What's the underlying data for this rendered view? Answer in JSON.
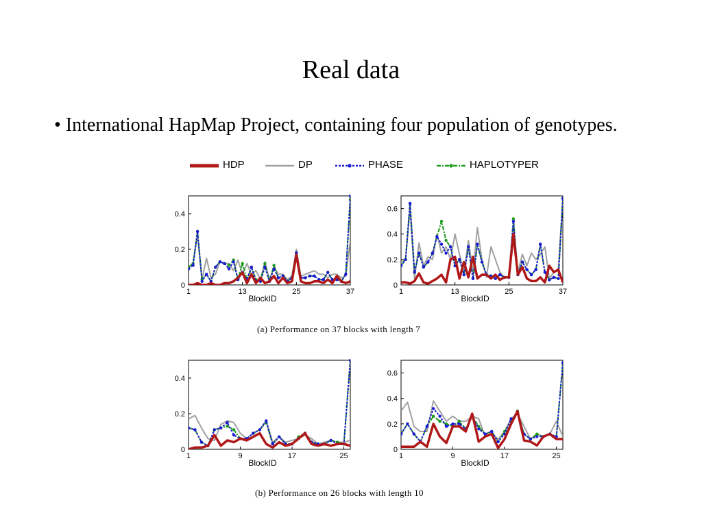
{
  "slide": {
    "title": "Real data",
    "bullet": "• International HapMap Project, containing four population of genotypes."
  },
  "legend": [
    {
      "label": "HDP",
      "color": "#b01818",
      "style": "solid-thick"
    },
    {
      "label": "DP",
      "color": "#a0a0a0",
      "style": "solid"
    },
    {
      "label": "PHASE",
      "color": "#1a1ad0",
      "style": "dotted-markers"
    },
    {
      "label": "HAPLOTYPER",
      "color": "#1a9a1a",
      "style": "dashdot-markers"
    }
  ],
  "captions": {
    "a": "(a)  Performance on 37 blocks with length 7",
    "b": "(b)  Performance on 26 blocks with length 10"
  },
  "chart_data": [
    {
      "type": "line",
      "id": "a-left",
      "xlabel": "BlockID",
      "x": [
        1,
        2,
        3,
        4,
        5,
        6,
        7,
        8,
        9,
        10,
        11,
        12,
        13,
        14,
        15,
        16,
        17,
        18,
        19,
        20,
        21,
        22,
        23,
        24,
        25,
        26,
        27,
        28,
        29,
        30,
        31,
        32,
        33,
        34,
        35,
        36,
        37
      ],
      "xticks": [
        1,
        13,
        25,
        37
      ],
      "ylim": [
        0,
        0.5
      ],
      "yticks": [
        0,
        0.2,
        0.4
      ],
      "yticklabels": [
        "0",
        "0.2",
        "0.4"
      ],
      "series": [
        {
          "name": "HDP",
          "values": [
            0,
            0,
            0.01,
            0,
            0,
            0.01,
            0,
            0,
            0.01,
            0.01,
            0.02,
            0.04,
            0.07,
            0.01,
            0.06,
            0.01,
            0.04,
            0.01,
            0.02,
            0.05,
            0.01,
            0.04,
            0.01,
            0.02,
            0.17,
            0.02,
            0.01,
            0.01,
            0.02,
            0.02,
            0.01,
            0.03,
            0.01,
            0.05,
            0.02,
            0.01,
            0.02
          ]
        },
        {
          "name": "DP",
          "values": [
            0.1,
            0.12,
            0.28,
            0.03,
            0.15,
            0.04,
            0.06,
            0.13,
            0.12,
            0.12,
            0.08,
            0.14,
            0.06,
            0.12,
            0.06,
            0.08,
            0.03,
            0.13,
            0.03,
            0.1,
            0.06,
            0.06,
            0.03,
            0.05,
            0.2,
            0.05,
            0.06,
            0.07,
            0.08,
            0.06,
            0.06,
            0.04,
            0.06,
            0.06,
            0.04,
            0.05,
            0.25
          ]
        },
        {
          "name": "PHASE",
          "values": [
            0.09,
            0.11,
            0.3,
            0.02,
            0.06,
            0.02,
            0.1,
            0.13,
            0.12,
            0.09,
            0.13,
            0.03,
            0.07,
            0.03,
            0.1,
            0.02,
            0.02,
            0.1,
            0.02,
            0.09,
            0.04,
            0.05,
            0.02,
            0.04,
            0.18,
            0.04,
            0.04,
            0.05,
            0.05,
            0.03,
            0.03,
            0.07,
            0.03,
            0.03,
            0.02,
            0.06,
            0.5
          ]
        },
        {
          "name": "HAPLOTYPER",
          "values": [
            0.1,
            0.12,
            0.3,
            0.03,
            0.06,
            0.02,
            0.1,
            0.13,
            0.12,
            0.11,
            0.14,
            0.03,
            0.12,
            0.03,
            0.1,
            0.03,
            0.02,
            0.12,
            0.02,
            0.11,
            0.04,
            0.05,
            0.02,
            0.04,
            0.18,
            0.04,
            0.04,
            0.05,
            0.05,
            0.03,
            0.03,
            0.07,
            0.03,
            0.03,
            0.02,
            0.06,
            0.48
          ]
        }
      ]
    },
    {
      "type": "line",
      "id": "a-right",
      "xlabel": "BlockID",
      "x": [
        1,
        2,
        3,
        4,
        5,
        6,
        7,
        8,
        9,
        10,
        11,
        12,
        13,
        14,
        15,
        16,
        17,
        18,
        19,
        20,
        21,
        22,
        23,
        24,
        25,
        26,
        27,
        28,
        29,
        30,
        31,
        32,
        33,
        34,
        35,
        36,
        37
      ],
      "xticks": [
        1,
        13,
        25,
        37
      ],
      "ylim": [
        0,
        0.7
      ],
      "yticks": [
        0,
        0.2,
        0.4,
        0.6
      ],
      "yticklabels": [
        "0",
        "0.2",
        "0.4",
        "0.6"
      ],
      "series": [
        {
          "name": "HDP",
          "values": [
            0.02,
            0.02,
            0.01,
            0.03,
            0.09,
            0.02,
            0.01,
            0.03,
            0.05,
            0.08,
            0.02,
            0.2,
            0.22,
            0.05,
            0.18,
            0.06,
            0.22,
            0.05,
            0.08,
            0.08,
            0.05,
            0.08,
            0.04,
            0.06,
            0.06,
            0.4,
            0.08,
            0.14,
            0.05,
            0.03,
            0.03,
            0.06,
            0.02,
            0.15,
            0.1,
            0.12,
            0.02
          ]
        },
        {
          "name": "DP",
          "values": [
            0.18,
            0.2,
            0.6,
            0.05,
            0.33,
            0.15,
            0.22,
            0.2,
            0.4,
            0.25,
            0.3,
            0.2,
            0.4,
            0.24,
            0.1,
            0.35,
            0.1,
            0.45,
            0.2,
            0.06,
            0.3,
            0.2,
            0.1,
            0.06,
            0.06,
            0.45,
            0.1,
            0.24,
            0.15,
            0.25,
            0.2,
            0.24,
            0.3,
            0.05,
            0.1,
            0.12,
            0.68
          ]
        },
        {
          "name": "PHASE",
          "values": [
            0.15,
            0.2,
            0.64,
            0.1,
            0.25,
            0.14,
            0.18,
            0.25,
            0.38,
            0.32,
            0.25,
            0.3,
            0.15,
            0.2,
            0.08,
            0.3,
            0.05,
            0.32,
            0.18,
            0.08,
            0.07,
            0.05,
            0.08,
            0.06,
            0.06,
            0.5,
            0.08,
            0.18,
            0.12,
            0.08,
            0.12,
            0.32,
            0.1,
            0.04,
            0.06,
            0.05,
            0.68
          ]
        },
        {
          "name": "HAPLOTYPER",
          "values": [
            0.15,
            0.2,
            0.64,
            0.1,
            0.25,
            0.14,
            0.18,
            0.25,
            0.38,
            0.5,
            0.35,
            0.3,
            0.15,
            0.2,
            0.08,
            0.3,
            0.05,
            0.32,
            0.18,
            0.08,
            0.07,
            0.05,
            0.08,
            0.06,
            0.06,
            0.52,
            0.08,
            0.18,
            0.12,
            0.08,
            0.12,
            0.32,
            0.1,
            0.04,
            0.06,
            0.05,
            0.68
          ]
        }
      ]
    },
    {
      "type": "line",
      "id": "b-left",
      "xlabel": "BlockID",
      "x": [
        1,
        2,
        3,
        4,
        5,
        6,
        7,
        8,
        9,
        10,
        11,
        12,
        13,
        14,
        15,
        16,
        17,
        18,
        19,
        20,
        21,
        22,
        23,
        24,
        25,
        26
      ],
      "xticks": [
        1,
        9,
        17,
        25
      ],
      "ylim": [
        0,
        0.5
      ],
      "yticks": [
        0,
        0.2,
        0.4
      ],
      "yticklabels": [
        "0",
        "0.2",
        "0.4"
      ],
      "series": [
        {
          "name": "HDP",
          "values": [
            0,
            0.01,
            0.01,
            0.02,
            0.08,
            0.02,
            0.05,
            0.04,
            0.06,
            0.05,
            0.07,
            0.09,
            0.03,
            0.01,
            0.04,
            0.02,
            0.03,
            0.06,
            0.09,
            0.03,
            0.02,
            0.03,
            0.02,
            0.03,
            0.03,
            0.02
          ]
        },
        {
          "name": "DP",
          "values": [
            0.17,
            0.19,
            0.12,
            0.06,
            0.05,
            0.14,
            0.16,
            0.15,
            0.09,
            0.06,
            0.09,
            0.11,
            0.16,
            0.04,
            0.07,
            0.04,
            0.05,
            0.06,
            0.08,
            0.06,
            0.03,
            0.04,
            0.05,
            0.04,
            0.04,
            0.05
          ]
        },
        {
          "name": "PHASE",
          "values": [
            0.12,
            0.11,
            0.04,
            0.02,
            0.11,
            0.12,
            0.15,
            0.08,
            0.06,
            0.06,
            0.09,
            0.11,
            0.16,
            0.03,
            0.07,
            0.03,
            0.03,
            0.06,
            0.09,
            0.04,
            0.03,
            0.03,
            0.05,
            0.03,
            0.03,
            0.5
          ]
        },
        {
          "name": "HAPLOTYPER",
          "values": [
            0.12,
            0.11,
            0.04,
            0.02,
            0.11,
            0.12,
            0.13,
            0.11,
            0.06,
            0.06,
            0.09,
            0.11,
            0.15,
            0.03,
            0.07,
            0.03,
            0.03,
            0.07,
            0.09,
            0.04,
            0.03,
            0.03,
            0.05,
            0.04,
            0.03,
            0.5
          ]
        }
      ]
    },
    {
      "type": "line",
      "id": "b-right",
      "xlabel": "BlockID",
      "x": [
        1,
        2,
        3,
        4,
        5,
        6,
        7,
        8,
        9,
        10,
        11,
        12,
        13,
        14,
        15,
        16,
        17,
        18,
        19,
        20,
        21,
        22,
        23,
        24,
        25,
        26
      ],
      "xticks": [
        1,
        9,
        17,
        25
      ],
      "ylim": [
        0,
        0.7
      ],
      "yticks": [
        0,
        0.2,
        0.4,
        0.6
      ],
      "yticklabels": [
        "0",
        "0.2",
        "0.4",
        "0.6"
      ],
      "series": [
        {
          "name": "HDP",
          "values": [
            0.02,
            0.02,
            0.02,
            0.06,
            0.02,
            0.2,
            0.1,
            0.05,
            0.18,
            0.18,
            0.14,
            0.28,
            0.06,
            0.1,
            0.12,
            0.01,
            0.08,
            0.2,
            0.3,
            0.07,
            0.06,
            0.03,
            0.1,
            0.12,
            0.08,
            0.08
          ]
        },
        {
          "name": "DP",
          "values": [
            0.3,
            0.37,
            0.18,
            0.14,
            0.14,
            0.38,
            0.3,
            0.22,
            0.26,
            0.22,
            0.22,
            0.26,
            0.24,
            0.1,
            0.12,
            0.08,
            0.14,
            0.24,
            0.28,
            0.18,
            0.08,
            0.12,
            0.1,
            0.12,
            0.22,
            0.1
          ]
        },
        {
          "name": "PHASE",
          "values": [
            0.12,
            0.2,
            0.12,
            0.06,
            0.18,
            0.32,
            0.26,
            0.18,
            0.2,
            0.2,
            0.16,
            0.26,
            0.16,
            0.12,
            0.14,
            0.06,
            0.12,
            0.24,
            0.28,
            0.12,
            0.08,
            0.1,
            0.1,
            0.12,
            0.1,
            0.68
          ]
        },
        {
          "name": "HAPLOTYPER",
          "values": [
            0.12,
            0.2,
            0.12,
            0.06,
            0.18,
            0.26,
            0.22,
            0.2,
            0.18,
            0.22,
            0.16,
            0.26,
            0.18,
            0.12,
            0.14,
            0.06,
            0.14,
            0.22,
            0.3,
            0.12,
            0.08,
            0.12,
            0.1,
            0.12,
            0.1,
            0.68
          ]
        }
      ]
    }
  ]
}
